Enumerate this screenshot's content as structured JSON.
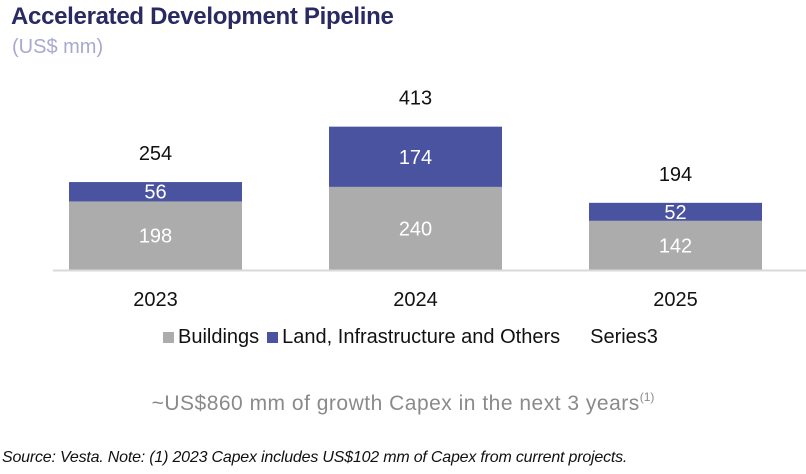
{
  "header": {
    "title": "Accelerated Development Pipeline",
    "subtitle": "(US$ mm)"
  },
  "colors": {
    "buildings": "#adacad",
    "land": "#4a53a0",
    "title": "#2a2a63",
    "subtitle": "#a8a8d2",
    "axis": "#d9d9d9"
  },
  "chart_data": {
    "type": "bar",
    "stacked": true,
    "title": "Accelerated Development Pipeline",
    "subtitle": "(US$ mm)",
    "xlabel": "",
    "ylabel": "",
    "categories": [
      "2023",
      "2024",
      "2025"
    ],
    "series": [
      {
        "name": "Buildings",
        "values": [
          198,
          240,
          142
        ],
        "color": "#adacad"
      },
      {
        "name": "Land, Infrastructure and Others",
        "values": [
          56,
          174,
          52
        ],
        "color": "#4a53a0"
      },
      {
        "name": "Series3",
        "values": [
          254,
          413,
          194
        ],
        "role": "total labels"
      }
    ],
    "totals": [
      254,
      413,
      194
    ],
    "ylim": [
      0,
      413
    ],
    "grid": false,
    "legend_position": "bottom"
  },
  "legend": [
    {
      "label": "Buildings",
      "swatch": "#adacad"
    },
    {
      "label": "Land, Infrastructure and Others",
      "swatch": "#4a53a0"
    },
    {
      "label": "Series3",
      "swatch": null
    }
  ],
  "highlight": {
    "text": "~US$860 mm of growth Capex in the next 3 years",
    "footnote_ref": "(1)"
  },
  "footnote": "Source: Vesta. Note: (1) 2023 Capex includes US$102 mm of Capex from current projects."
}
